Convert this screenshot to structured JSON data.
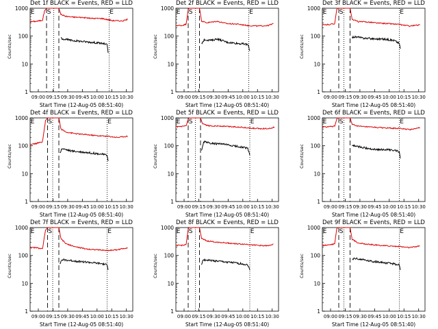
{
  "figure": {
    "colors": {
      "events": "#000000",
      "lld": "#dd0000",
      "axes": "#000000",
      "background": "#ffffff"
    },
    "marker_labels": [
      "E",
      "S",
      "E"
    ],
    "x_ticks": [
      "09:00",
      "09:15",
      "09:30",
      "09:45",
      "10:00",
      "10:15",
      "10:30"
    ],
    "y_ticks": [
      "1",
      "10",
      "100",
      "1000"
    ],
    "ylabel": "Counts/sec",
    "xlabel": "Start Time (12-Aug-05 08:51:40)"
  },
  "chart_data": [
    {
      "type": "line",
      "title": "Det 1f BLACK = Events, RED = LLD",
      "xlabel": "Start Time (12-Aug-05 08:51:40)",
      "ylabel": "Counts/sec",
      "yscale": "log",
      "ylim": [
        1,
        1000
      ],
      "xlim": [
        0,
        100
      ],
      "markers": {
        "dashed": [
          16,
          28
        ],
        "dotted": [
          23,
          77
        ]
      },
      "series": [
        {
          "name": "LLD",
          "x": [
            0,
            6,
            12,
            14,
            16,
            17,
            28,
            30,
            35,
            42,
            50,
            60,
            70,
            80,
            90,
            95
          ],
          "y": [
            330,
            340,
            370,
            800,
            1000,
            1000,
            1000,
            600,
            510,
            480,
            470,
            430,
            430,
            360,
            350,
            400
          ]
        },
        {
          "name": "Events",
          "x": [
            30,
            32,
            40,
            50,
            60,
            70,
            75,
            76
          ],
          "y": [
            85,
            80,
            70,
            65,
            60,
            55,
            50,
            25
          ]
        }
      ]
    },
    {
      "type": "line",
      "title": "Det 2f BLACK = Events, RED = LLD",
      "xlabel": "Start Time (12-Aug-05 08:51:40)",
      "ylabel": "Counts/sec",
      "yscale": "log",
      "ylim": [
        1,
        1000
      ],
      "xlim": [
        0,
        100
      ],
      "markers": {
        "dashed": [
          12,
          23
        ],
        "dotted": [
          19,
          71
        ]
      },
      "series": [
        {
          "name": "LLD",
          "x": [
            0,
            6,
            10,
            12,
            13,
            23,
            25,
            30,
            40,
            50,
            60,
            70,
            80,
            90,
            95
          ],
          "y": [
            240,
            240,
            270,
            900,
            1000,
            1000,
            350,
            300,
            340,
            280,
            270,
            240,
            230,
            240,
            280
          ]
        },
        {
          "name": "Events",
          "x": [
            25,
            28,
            35,
            40,
            50,
            60,
            70,
            72
          ],
          "y": [
            55,
            75,
            70,
            80,
            60,
            55,
            50,
            30
          ]
        }
      ]
    },
    {
      "type": "line",
      "title": "Det 3f BLACK = Events, RED = LLD",
      "xlabel": "Start Time (12-Aug-05 08:51:40)",
      "ylabel": "Counts/sec",
      "yscale": "log",
      "ylim": [
        1,
        1000
      ],
      "xlim": [
        0,
        100
      ],
      "markers": {
        "dashed": [
          16,
          27
        ],
        "dotted": [
          21,
          75
        ]
      },
      "series": [
        {
          "name": "LLD",
          "x": [
            0,
            6,
            12,
            14,
            15,
            27,
            29,
            35,
            45,
            55,
            65,
            75,
            85,
            95
          ],
          "y": [
            250,
            260,
            280,
            900,
            1000,
            1000,
            400,
            330,
            320,
            290,
            280,
            260,
            230,
            250
          ]
        },
        {
          "name": "Events",
          "x": [
            29,
            31,
            40,
            50,
            60,
            70,
            75,
            76
          ],
          "y": [
            90,
            95,
            85,
            80,
            78,
            70,
            55,
            35
          ]
        }
      ]
    },
    {
      "type": "line",
      "title": "Det 4f BLACK = Events, RED = LLD",
      "xlabel": "Start Time (12-Aug-05 08:51:40)",
      "ylabel": "Counts/sec",
      "yscale": "log",
      "ylim": [
        1,
        1000
      ],
      "xlim": [
        0,
        100
      ],
      "markers": {
        "dashed": [
          17,
          28
        ],
        "dotted": [
          22,
          75
        ]
      },
      "series": [
        {
          "name": "LLD",
          "x": [
            0,
            6,
            12,
            15,
            17,
            28,
            30,
            35,
            45,
            55,
            65,
            75,
            85,
            95
          ],
          "y": [
            110,
            120,
            140,
            800,
            1000,
            1000,
            400,
            310,
            270,
            250,
            230,
            220,
            200,
            220
          ]
        },
        {
          "name": "Events",
          "x": [
            29,
            31,
            40,
            50,
            60,
            70,
            75,
            76
          ],
          "y": [
            55,
            80,
            65,
            60,
            55,
            50,
            45,
            28
          ]
        }
      ]
    },
    {
      "type": "line",
      "title": "Det 5f BLACK = Events, RED = LLD",
      "xlabel": "Start Time (12-Aug-05 08:51:40)",
      "ylabel": "Counts/sec",
      "yscale": "log",
      "ylim": [
        1,
        1000
      ],
      "xlim": [
        0,
        100
      ],
      "markers": {
        "dashed": [
          12,
          24
        ],
        "dotted": [
          19,
          72
        ]
      },
      "series": [
        {
          "name": "LLD",
          "x": [
            0,
            6,
            10,
            12,
            13,
            24,
            26,
            32,
            42,
            52,
            62,
            72,
            82,
            92,
            96
          ],
          "y": [
            480,
            490,
            520,
            900,
            1000,
            1000,
            600,
            520,
            510,
            490,
            470,
            430,
            410,
            420,
            470
          ]
        },
        {
          "name": "Events",
          "x": [
            25,
            27,
            35,
            45,
            55,
            65,
            70,
            72
          ],
          "y": [
            70,
            140,
            120,
            115,
            100,
            90,
            80,
            45
          ]
        }
      ]
    },
    {
      "type": "line",
      "title": "Det 6f BLACK = Events, RED = LLD",
      "xlabel": "Start Time (12-Aug-05 08:51:40)",
      "ylabel": "Counts/sec",
      "yscale": "log",
      "ylim": [
        1,
        1000
      ],
      "xlim": [
        0,
        100
      ],
      "markers": {
        "dashed": [
          16,
          27
        ],
        "dotted": [
          21,
          75
        ]
      },
      "series": [
        {
          "name": "LLD",
          "x": [
            0,
            6,
            12,
            14,
            15,
            27,
            29,
            35,
            45,
            55,
            65,
            75,
            85,
            95
          ],
          "y": [
            470,
            480,
            500,
            900,
            1000,
            1000,
            600,
            500,
            470,
            450,
            430,
            420,
            380,
            450
          ]
        },
        {
          "name": "Events",
          "x": [
            29,
            31,
            40,
            50,
            60,
            70,
            75,
            76
          ],
          "y": [
            95,
            100,
            85,
            75,
            72,
            70,
            60,
            35
          ]
        }
      ]
    },
    {
      "type": "line",
      "title": "Det 7f BLACK = Events, RED = LLD",
      "xlabel": "Start Time (12-Aug-05 08:51:40)",
      "ylabel": "Counts/sec",
      "yscale": "log",
      "ylim": [
        1,
        1000
      ],
      "xlim": [
        0,
        100
      ],
      "markers": {
        "dashed": [
          17,
          28
        ],
        "dotted": [
          22,
          75
        ]
      },
      "series": [
        {
          "name": "LLD",
          "x": [
            0,
            6,
            12,
            15,
            17,
            28,
            30,
            35,
            45,
            55,
            65,
            75,
            85,
            95
          ],
          "y": [
            190,
            190,
            170,
            800,
            1000,
            1000,
            400,
            260,
            200,
            170,
            160,
            150,
            160,
            190
          ]
        },
        {
          "name": "Events",
          "x": [
            29,
            31,
            40,
            50,
            60,
            70,
            75,
            76
          ],
          "y": [
            50,
            70,
            65,
            60,
            55,
            50,
            45,
            30
          ]
        }
      ]
    },
    {
      "type": "line",
      "title": "Det 8f BLACK = Events, RED = LLD",
      "xlabel": "Start Time (12-Aug-05 08:51:40)",
      "ylabel": "Counts/sec",
      "yscale": "log",
      "ylim": [
        1,
        1000
      ],
      "xlim": [
        0,
        100
      ],
      "markers": {
        "dashed": [
          12,
          23
        ],
        "dotted": [
          19,
          72
        ]
      },
      "series": [
        {
          "name": "LLD",
          "x": [
            0,
            6,
            10,
            12,
            13,
            23,
            25,
            30,
            40,
            50,
            60,
            70,
            80,
            90,
            95
          ],
          "y": [
            230,
            230,
            250,
            900,
            1000,
            1000,
            400,
            330,
            300,
            280,
            260,
            250,
            230,
            220,
            260
          ]
        },
        {
          "name": "Events",
          "x": [
            25,
            27,
            35,
            45,
            55,
            65,
            70,
            72
          ],
          "y": [
            50,
            70,
            65,
            60,
            55,
            50,
            45,
            30
          ]
        }
      ]
    },
    {
      "type": "line",
      "title": "Det 9f BLACK = Events, RED = LLD",
      "xlabel": "Start Time (12-Aug-05 08:51:40)",
      "ylabel": "Counts/sec",
      "yscale": "log",
      "ylim": [
        1,
        1000
      ],
      "xlim": [
        0,
        100
      ],
      "markers": {
        "dashed": [
          16,
          27
        ],
        "dotted": [
          21,
          75
        ]
      },
      "series": [
        {
          "name": "LLD",
          "x": [
            0,
            6,
            12,
            14,
            15,
            27,
            29,
            35,
            45,
            55,
            65,
            75,
            85,
            95
          ],
          "y": [
            230,
            240,
            260,
            900,
            1000,
            1000,
            380,
            280,
            250,
            230,
            220,
            210,
            190,
            220
          ]
        },
        {
          "name": "Events",
          "x": [
            29,
            31,
            40,
            50,
            60,
            70,
            75,
            76
          ],
          "y": [
            70,
            80,
            70,
            60,
            55,
            50,
            45,
            30
          ]
        }
      ]
    }
  ]
}
